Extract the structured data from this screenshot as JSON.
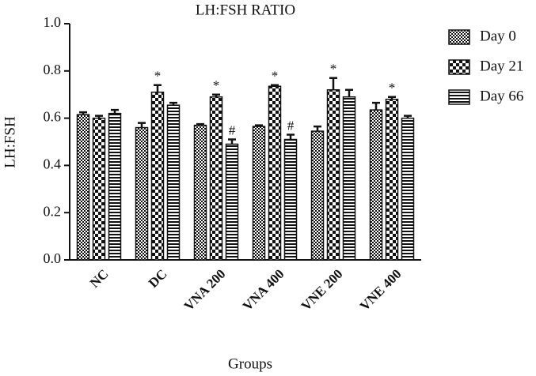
{
  "chart_data": {
    "type": "bar",
    "title": "LH:FSH RATIO",
    "x_label": "Groups",
    "y_label": "LH:FSH",
    "categories": [
      "NC",
      "DC",
      "VNA 200",
      "VNA 400",
      "VNE 200",
      "VNE 400"
    ],
    "series": [
      {
        "name": "Day 0",
        "pattern": "fine-checker",
        "values": [
          0.615,
          0.56,
          0.57,
          0.565,
          0.545,
          0.635
        ],
        "errors": [
          0.01,
          0.02,
          0.005,
          0.005,
          0.02,
          0.03
        ]
      },
      {
        "name": "Day 21",
        "pattern": "coarse-checker",
        "values": [
          0.6,
          0.71,
          0.69,
          0.735,
          0.72,
          0.68
        ],
        "errors": [
          0.01,
          0.03,
          0.01,
          0.005,
          0.05,
          0.01
        ],
        "annotations": [
          null,
          "*",
          "*",
          "*",
          "*",
          "*"
        ]
      },
      {
        "name": "Day 66",
        "pattern": "horizontal-lines",
        "values": [
          0.62,
          0.655,
          0.49,
          0.51,
          0.69,
          0.6
        ],
        "errors": [
          0.015,
          0.01,
          0.02,
          0.02,
          0.03,
          0.01
        ],
        "annotations": [
          null,
          null,
          "#",
          "#",
          null,
          null
        ]
      }
    ],
    "ylim": [
      0,
      1
    ],
    "yticks": [
      {
        "value": 0,
        "label": "0.0"
      },
      0.2,
      0.4,
      0.6,
      0.8,
      {
        "value": 1,
        "label": "1.0"
      }
    ],
    "legend": "right"
  }
}
